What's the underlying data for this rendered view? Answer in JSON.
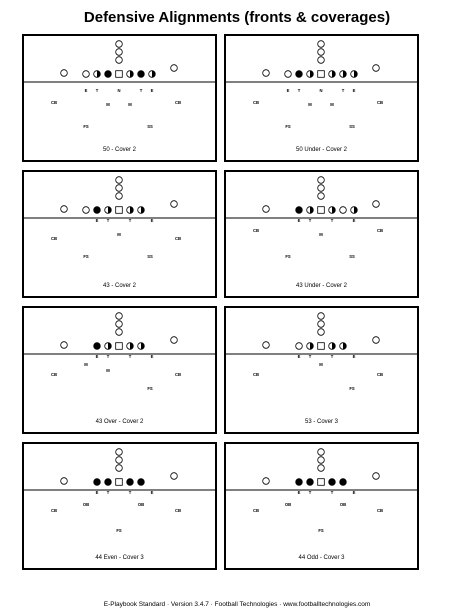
{
  "page": {
    "title": "Defensive Alignments (fronts & coverages)",
    "footer": "E-Playbook Standard  ·  Version  3.4.7  ·  Football Technologies  ·  www.footballtechnologies.com"
  },
  "diagrams": [
    {
      "caption": "50 - Cover 2",
      "labels": [
        [
          "E",
          62,
          56
        ],
        [
          "T",
          73,
          56
        ],
        [
          "N",
          95,
          56
        ],
        [
          "T",
          117,
          56
        ],
        [
          "E",
          128,
          56
        ],
        [
          "CB",
          30,
          68
        ],
        [
          "CB",
          154,
          68
        ],
        [
          "M",
          84,
          70
        ],
        [
          "M",
          106,
          70
        ],
        [
          "FS",
          62,
          92
        ],
        [
          "SS",
          126,
          92
        ]
      ]
    },
    {
      "caption": "50 Under - Cover 2",
      "labels": [
        [
          "E",
          62,
          56
        ],
        [
          "T",
          73,
          56
        ],
        [
          "N",
          95,
          56
        ],
        [
          "T",
          117,
          56
        ],
        [
          "E",
          128,
          56
        ],
        [
          "CB",
          30,
          68
        ],
        [
          "CB",
          154,
          68
        ],
        [
          "M",
          84,
          70
        ],
        [
          "M",
          106,
          70
        ],
        [
          "FS",
          62,
          92
        ],
        [
          "SS",
          126,
          92
        ]
      ]
    },
    {
      "caption": "43 - Cover 2",
      "labels": [
        [
          "E",
          73,
          50
        ],
        [
          "T",
          84,
          50
        ],
        [
          "T",
          106,
          50
        ],
        [
          "E",
          128,
          50
        ],
        [
          "CB",
          30,
          68
        ],
        [
          "CB",
          154,
          68
        ],
        [
          "M",
          95,
          64
        ],
        [
          "FS",
          62,
          86
        ],
        [
          "SS",
          126,
          86
        ]
      ]
    },
    {
      "caption": "43 Under - Cover 2",
      "labels": [
        [
          "E",
          73,
          50
        ],
        [
          "T",
          84,
          50
        ],
        [
          "T",
          106,
          50
        ],
        [
          "E",
          128,
          50
        ],
        [
          "CB",
          30,
          60
        ],
        [
          "CB",
          154,
          60
        ],
        [
          "M",
          95,
          64
        ],
        [
          "FS",
          62,
          86
        ],
        [
          "SS",
          126,
          86
        ]
      ]
    },
    {
      "caption": "43 Over - Cover 2",
      "labels": [
        [
          "E",
          73,
          50
        ],
        [
          "T",
          84,
          50
        ],
        [
          "T",
          106,
          50
        ],
        [
          "E",
          128,
          50
        ],
        [
          "M",
          62,
          58
        ],
        [
          "M",
          84,
          64
        ],
        [
          "CB",
          30,
          68
        ],
        [
          "CB",
          154,
          68
        ],
        [
          "FS",
          126,
          82
        ]
      ]
    },
    {
      "caption": "53 - Cover 3",
      "labels": [
        [
          "E",
          73,
          50
        ],
        [
          "T",
          84,
          50
        ],
        [
          "T",
          106,
          50
        ],
        [
          "E",
          128,
          50
        ],
        [
          "M",
          95,
          58
        ],
        [
          "CB",
          30,
          68
        ],
        [
          "CB",
          154,
          68
        ],
        [
          "FS",
          126,
          82
        ]
      ]
    },
    {
      "caption": "44 Even - Cover 3",
      "labels": [
        [
          "E",
          73,
          50
        ],
        [
          "T",
          84,
          50
        ],
        [
          "T",
          106,
          50
        ],
        [
          "E",
          128,
          50
        ],
        [
          "OB",
          62,
          62
        ],
        [
          "OB",
          117,
          62
        ],
        [
          "CB",
          30,
          68
        ],
        [
          "CB",
          154,
          68
        ],
        [
          "FS",
          95,
          88
        ]
      ]
    },
    {
      "caption": "44 Odd - Cover 3",
      "labels": [
        [
          "E",
          73,
          50
        ],
        [
          "T",
          84,
          50
        ],
        [
          "T",
          106,
          50
        ],
        [
          "E",
          128,
          50
        ],
        [
          "OB",
          62,
          62
        ],
        [
          "OB",
          117,
          62
        ],
        [
          "CB",
          30,
          68
        ],
        [
          "CB",
          154,
          68
        ],
        [
          "FS",
          95,
          88
        ]
      ]
    }
  ]
}
